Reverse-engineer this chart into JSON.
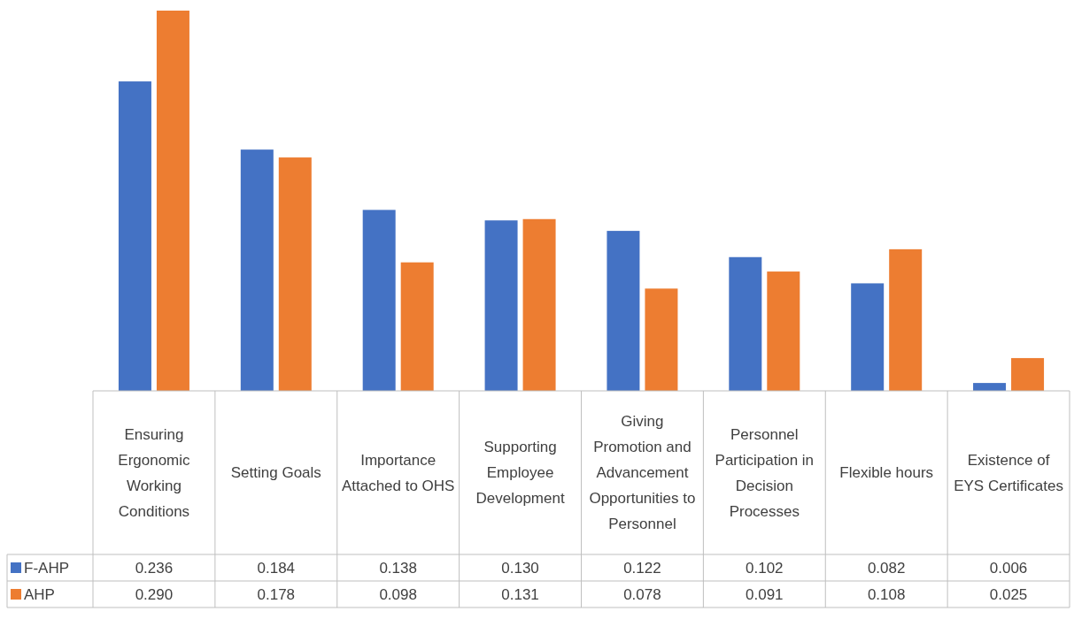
{
  "chart_data": {
    "type": "bar",
    "categories": [
      "Ensuring Ergonomic Working Conditions",
      "Setting Goals",
      "Importance Attached to OHS",
      "Supporting Employee Development",
      "Giving Promotion and Advancement Opportunities to Personnel",
      "Personnel Participation in Decision Processes",
      "Flexible hours",
      "Existence of EYS Certificates"
    ],
    "series": [
      {
        "name": "F-AHP",
        "color": "#4472c4",
        "values": [
          0.236,
          0.184,
          0.138,
          0.13,
          0.122,
          0.102,
          0.082,
          0.006
        ],
        "value_labels": [
          "0.236",
          "0.184",
          "0.138",
          "0.130",
          "0.122",
          "0.102",
          "0.082",
          "0.006"
        ]
      },
      {
        "name": "AHP",
        "color": "#ed7d31",
        "values": [
          0.29,
          0.178,
          0.098,
          0.131,
          0.078,
          0.091,
          0.108,
          0.025
        ],
        "value_labels": [
          "0.290",
          "0.178",
          "0.098",
          "0.131",
          "0.078",
          "0.091",
          "0.108",
          "0.025"
        ]
      }
    ],
    "legend": "bottom",
    "grid": false
  }
}
